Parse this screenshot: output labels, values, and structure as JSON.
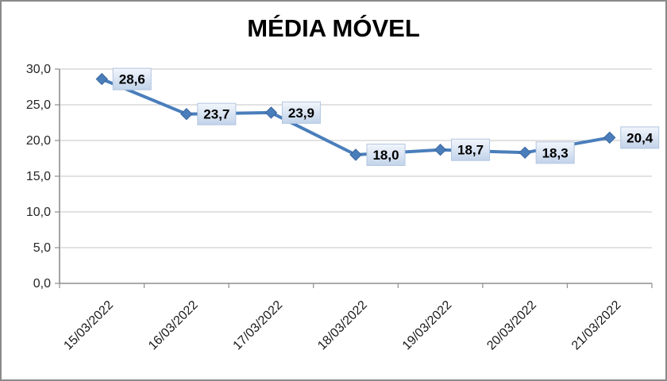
{
  "page": {
    "background_color": "#ffffff",
    "frame_border_color": "#8a8a8a"
  },
  "chart_data": {
    "type": "line",
    "title": "MÉDIA MÓVEL",
    "categories": [
      "15/03/2022",
      "16/03/2022",
      "17/03/2022",
      "18/03/2022",
      "19/03/2022",
      "20/03/2022",
      "21/03/2022"
    ],
    "values": [
      28.6,
      23.7,
      23.9,
      18.0,
      18.7,
      18.3,
      20.4
    ],
    "data_labels": [
      "28,6",
      "23,7",
      "23,9",
      "18,0",
      "18,7",
      "18,3",
      "20,4"
    ],
    "ylim": [
      0,
      30
    ],
    "ytick_step": 5,
    "ytick_labels": [
      "0,0",
      "5,0",
      "10,0",
      "15,0",
      "20,0",
      "25,0",
      "30,0"
    ],
    "xlabel": "",
    "ylabel": "",
    "grid": true,
    "legend": "none",
    "marker": "diamond",
    "colors": {
      "line": "#4a7ebb",
      "marker_fill": "#4a7ebb",
      "marker_stroke": "#3a659c",
      "label_bg_top": "#f2f6fc",
      "label_bg_bottom": "#c2d3ea",
      "label_border": "#b3c6e0",
      "gridline": "#c6c6c6",
      "axis": "#8e8e8e",
      "tick_label_text": "#262626",
      "data_label_text": "#000000"
    }
  }
}
